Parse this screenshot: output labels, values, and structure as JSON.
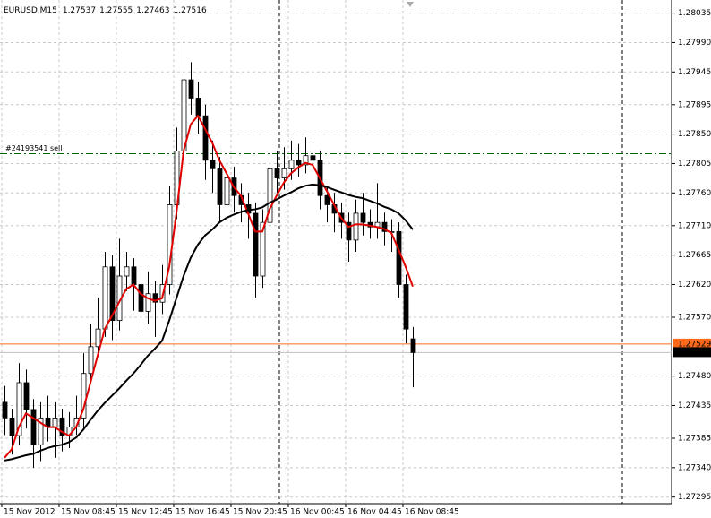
{
  "chart_data": {
    "type": "candlestick",
    "title": "EURUSD,M15",
    "header_values": [
      "1.27537",
      "1.27555",
      "1.27463",
      "1.27516"
    ],
    "categories": [
      "15 Nov 2012",
      null,
      null,
      null,
      null,
      null,
      null,
      null,
      "15 Nov 08:45",
      null,
      null,
      null,
      null,
      null,
      null,
      null,
      "15 Nov 12:45",
      null,
      null,
      null,
      null,
      null,
      null,
      null,
      "15 Nov 16:45",
      null,
      null,
      null,
      null,
      null,
      null,
      null,
      "15 Nov 20:45",
      null,
      null,
      null,
      null,
      null,
      null,
      null,
      "16 Nov 00:45",
      null,
      null,
      null,
      null,
      null,
      null,
      null,
      "16 Nov 04:45",
      null,
      null,
      null,
      null,
      null,
      null,
      null,
      "16 Nov 08:45",
      null
    ],
    "open": [
      1.2744,
      1.27416,
      1.27389,
      1.2747,
      1.27429,
      1.27375,
      1.27416,
      1.27402,
      1.27416,
      1.27389,
      1.27402,
      1.27416,
      1.27484,
      1.27525,
      1.27552,
      1.27647,
      1.27565,
      1.27633,
      1.27647,
      1.2762,
      1.27579,
      1.27606,
      1.27593,
      1.2762,
      1.27742,
      1.27824,
      1.27933,
      1.27905,
      1.27878,
      1.2781,
      1.27797,
      1.27742,
      1.27783,
      1.27756,
      1.27742,
      1.27729,
      1.27633,
      1.27715,
      1.27797,
      1.27783,
      1.27797,
      1.2781,
      1.27803,
      1.27817,
      1.2781,
      1.27756,
      1.27742,
      1.27729,
      1.27715,
      1.27688,
      1.27729,
      1.27715,
      1.27708,
      1.27715,
      1.27701,
      1.27701,
      1.2762,
      1.27537
    ],
    "high": [
      1.27465,
      1.2743,
      1.275,
      1.2749,
      1.27445,
      1.2744,
      1.2745,
      1.2744,
      1.2743,
      1.27425,
      1.2745,
      1.27515,
      1.2756,
      1.276,
      1.2767,
      1.27665,
      1.2769,
      1.2767,
      1.2766,
      1.2764,
      1.2764,
      1.27625,
      1.2765,
      1.2777,
      1.2786,
      1.28,
      1.2796,
      1.2793,
      1.27895,
      1.2784,
      1.27815,
      1.2782,
      1.278,
      1.27775,
      1.2776,
      1.27745,
      1.27735,
      1.2782,
      1.27825,
      1.2783,
      1.2784,
      1.27835,
      1.27845,
      1.2784,
      1.27825,
      1.2777,
      1.2776,
      1.27745,
      1.2773,
      1.2775,
      1.2776,
      1.27735,
      1.27775,
      1.2773,
      1.2772,
      1.27715,
      1.27635,
      1.27555
    ],
    "low": [
      1.2739,
      1.2736,
      1.27375,
      1.274,
      1.2734,
      1.2735,
      1.2738,
      1.27355,
      1.27365,
      1.2737,
      1.2739,
      1.274,
      1.2747,
      1.2751,
      1.2754,
      1.27535,
      1.2755,
      1.2761,
      1.2758,
      1.2755,
      1.2756,
      1.2754,
      1.27575,
      1.27605,
      1.2772,
      1.278,
      1.2788,
      1.2785,
      1.2778,
      1.2776,
      1.27715,
      1.27725,
      1.2773,
      1.27715,
      1.2769,
      1.276,
      1.27615,
      1.277,
      1.2776,
      1.27765,
      1.2778,
      1.27785,
      1.2779,
      1.27795,
      1.27735,
      1.27715,
      1.277,
      1.2769,
      1.27655,
      1.2767,
      1.27695,
      1.2769,
      1.2769,
      1.2768,
      1.2767,
      1.276,
      1.2753,
      1.27463
    ],
    "close": [
      1.27416,
      1.27389,
      1.2747,
      1.27429,
      1.27375,
      1.27416,
      1.27402,
      1.27416,
      1.27389,
      1.27402,
      1.27416,
      1.27484,
      1.27525,
      1.27552,
      1.27647,
      1.27565,
      1.27633,
      1.27647,
      1.2762,
      1.27579,
      1.27606,
      1.27593,
      1.2762,
      1.27742,
      1.27824,
      1.27933,
      1.27905,
      1.27878,
      1.2781,
      1.27797,
      1.27742,
      1.27783,
      1.27756,
      1.27742,
      1.27729,
      1.27633,
      1.27715,
      1.27797,
      1.27783,
      1.27797,
      1.2781,
      1.27803,
      1.27817,
      1.2781,
      1.27756,
      1.27742,
      1.27729,
      1.27715,
      1.27688,
      1.27729,
      1.27715,
      1.27708,
      1.27715,
      1.27701,
      1.27701,
      1.2762,
      1.27552,
      1.27516
    ],
    "bull_color": "#ffffff",
    "bear_color": "#000000",
    "series": [
      {
        "color": "#e00000",
        "values": [
          1.27355,
          1.27368,
          1.27402,
          1.27423,
          1.27416,
          1.27409,
          1.27402,
          1.27402,
          1.27395,
          1.27389,
          1.27402,
          1.27429,
          1.2747,
          1.27511,
          1.27552,
          1.27572,
          1.27593,
          1.27613,
          1.2762,
          1.27606,
          1.27599,
          1.27595,
          1.27599,
          1.27647,
          1.27729,
          1.27824,
          1.27865,
          1.27878,
          1.27858,
          1.27837,
          1.2781,
          1.2779,
          1.27769,
          1.27756,
          1.27729,
          1.27701,
          1.27701,
          1.27735,
          1.27756,
          1.27776,
          1.2779,
          1.27799,
          1.27806,
          1.27803,
          1.27783,
          1.27763,
          1.27742,
          1.27722,
          1.27708,
          1.27712,
          1.27712,
          1.2771,
          1.27708,
          1.27705,
          1.27699,
          1.27674,
          1.27647,
          1.27617
        ]
      },
      {
        "color": "#000000",
        "values": [
          1.27351,
          1.27353,
          1.27356,
          1.27359,
          1.27361,
          1.27366,
          1.2737,
          1.27373,
          1.27375,
          1.27379,
          1.27386,
          1.27398,
          1.27413,
          1.27427,
          1.27439,
          1.2745,
          1.27461,
          1.27473,
          1.27484,
          1.27497,
          1.27511,
          1.27522,
          1.27534,
          1.27565,
          1.27599,
          1.27633,
          1.27661,
          1.27681,
          1.27695,
          1.27704,
          1.27715,
          1.27722,
          1.27727,
          1.27731,
          1.27734,
          1.27735,
          1.27738,
          1.27745,
          1.2775,
          1.27756,
          1.27761,
          1.27767,
          1.27771,
          1.27773,
          1.27772,
          1.27769,
          1.27765,
          1.27761,
          1.27757,
          1.27754,
          1.27752,
          1.27748,
          1.27744,
          1.27739,
          1.27735,
          1.27729,
          1.27718,
          1.27704
        ]
      }
    ],
    "ylim": [
      1.27285,
      1.28055
    ],
    "yticks": [
      1.28035,
      {
        "value": 1.2799,
        "label": "1.27990"
      },
      1.27945,
      1.27895,
      {
        "value": 1.2785,
        "label": "1.27850"
      },
      1.27805,
      {
        "value": 1.2776,
        "label": "1.27760"
      },
      {
        "value": 1.2771,
        "label": "1.27710"
      },
      1.27665,
      {
        "value": 1.2762,
        "label": "1.27620"
      },
      {
        "value": 1.2757,
        "label": "1.27570"
      },
      {
        "value": 1.2748,
        "label": "1.27480"
      },
      1.27435,
      1.27385,
      {
        "value": 1.2734,
        "label": "1.27340"
      },
      1.27295
    ],
    "grid": true,
    "levels": [
      {
        "value": 1.2782,
        "label": "#24193541 sell",
        "color": "#006400"
      },
      {
        "value": 1.27529,
        "label": "1.27529",
        "color": "#ff6a1a"
      },
      {
        "value": 1.27516,
        "label": "1.27516",
        "color": "#000000"
      }
    ]
  }
}
